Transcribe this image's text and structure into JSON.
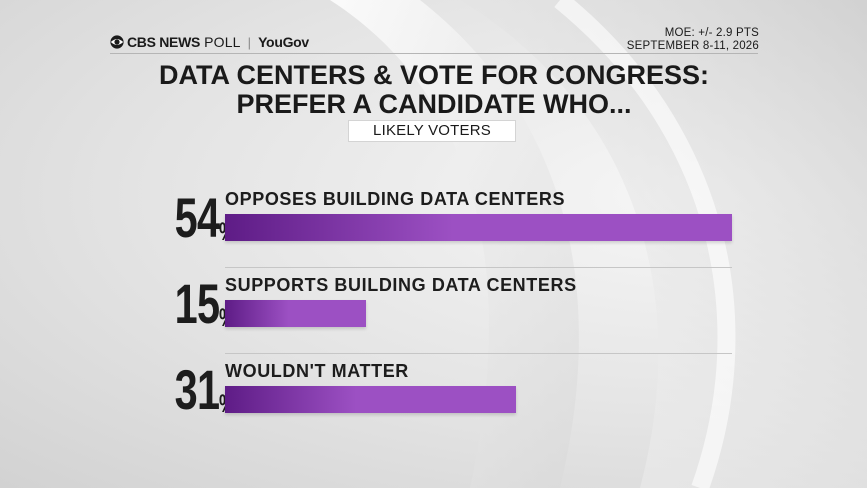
{
  "header": {
    "brand_cbs": "CBS NEWS",
    "brand_poll": "POLL",
    "brand_separator": "|",
    "brand_yougov": "YouGov",
    "moe": "MOE: +/- 2.9 PTS",
    "dates": "SEPTEMBER 8-11, 2026"
  },
  "colors": {
    "bar_start": "#5e1c86",
    "bar_end": "#9c50c3",
    "text": "#1d1d1d"
  },
  "icons": {
    "brand_logo": "cbs-eye-icon"
  },
  "chart_data": {
    "type": "bar",
    "orientation": "horizontal",
    "title_lines": [
      "DATA CENTERS & VOTE FOR CONGRESS:",
      "PREFER A CANDIDATE WHO..."
    ],
    "subtitle": "LIKELY VOTERS",
    "categories": [
      "OPPOSES BUILDING DATA CENTERS",
      "SUPPORTS BUILDING DATA CENTERS",
      "WOULDN'T MATTER"
    ],
    "values": [
      54,
      15,
      31
    ],
    "display_values": [
      "54",
      "15",
      "31"
    ],
    "value_suffix": "%",
    "xlim": [
      0,
      54
    ],
    "grid": false,
    "legend": "none"
  }
}
